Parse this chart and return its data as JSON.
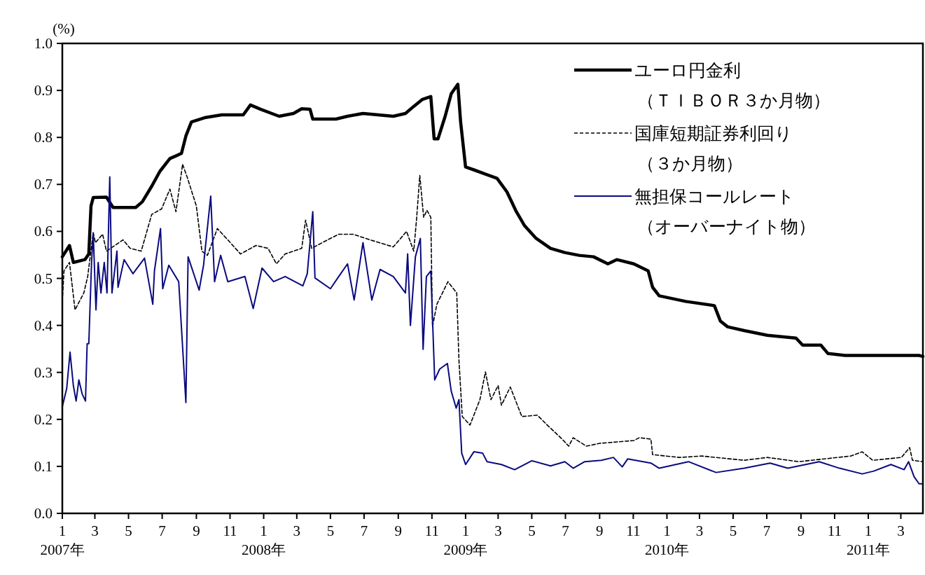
{
  "chart_data": {
    "type": "line",
    "ylabel": "(%)",
    "legend": "top right",
    "grid": false,
    "xlim": [
      "2007-01-01",
      "2011-04-10"
    ],
    "xticks": [
      {
        "value": "2007-01-01",
        "label": "1\n2007年"
      },
      {
        "value": "2007-03-01",
        "label": "3"
      },
      {
        "value": "2007-05-01",
        "label": "5"
      },
      {
        "value": "2007-07-01",
        "label": "7"
      },
      {
        "value": "2007-09-01",
        "label": "9"
      },
      {
        "value": "2007-11-01",
        "label": "11"
      },
      {
        "value": "2008-01-01",
        "label": "1\n2008年"
      },
      {
        "value": "2008-03-01",
        "label": "3"
      },
      {
        "value": "2008-05-01",
        "label": "5"
      },
      {
        "value": "2008-07-01",
        "label": "7"
      },
      {
        "value": "2008-09-01",
        "label": "9"
      },
      {
        "value": "2008-11-01",
        "label": "11"
      },
      {
        "value": "2009-01-01",
        "label": "1\n2009年"
      },
      {
        "value": "2009-03-01",
        "label": "3"
      },
      {
        "value": "2009-05-01",
        "label": "5"
      },
      {
        "value": "2009-07-01",
        "label": "7"
      },
      {
        "value": "2009-09-01",
        "label": "9"
      },
      {
        "value": "2009-11-01",
        "label": "11"
      },
      {
        "value": "2010-01-01",
        "label": "1\n2010年"
      },
      {
        "value": "2010-03-01",
        "label": "3"
      },
      {
        "value": "2010-05-01",
        "label": "5"
      },
      {
        "value": "2010-07-01",
        "label": "7"
      },
      {
        "value": "2010-09-01",
        "label": "9"
      },
      {
        "value": "2010-11-01",
        "label": "11"
      },
      {
        "value": "2011-01-01",
        "label": "1\n2011年"
      },
      {
        "value": "2011-03-01",
        "label": "3"
      }
    ],
    "ylim": [
      0,
      1
    ],
    "yticks": [
      {
        "value": 0,
        "label": "0.0"
      },
      {
        "value": 0.1,
        "label": "0.1"
      },
      {
        "value": 0.2,
        "label": "0.2"
      },
      {
        "value": 0.3,
        "label": "0.3"
      },
      {
        "value": 0.4,
        "label": "0.4"
      },
      {
        "value": 0.5,
        "label": "0.5"
      },
      {
        "value": 0.6,
        "label": "0.6"
      },
      {
        "value": 0.7,
        "label": "0.7"
      },
      {
        "value": 0.8,
        "label": "0.8"
      },
      {
        "value": 0.9,
        "label": "0.9"
      },
      {
        "value": 1,
        "label": "1.0"
      }
    ],
    "series": [
      {
        "name": "ユーロ円金利（ＴＩＢＯＲ３か月物）",
        "color": "#000000",
        "line_style": "solid",
        "x": [
          "2007-01-01",
          "2007-01-14",
          "2007-01-21",
          "2007-02-11",
          "2007-02-18",
          "2007-02-22",
          "2007-02-26",
          "2007-03-22",
          "2007-04-03",
          "2007-05-14",
          "2007-05-26",
          "2007-06-12",
          "2007-06-27",
          "2007-07-15",
          "2007-08-05",
          "2007-08-13",
          "2007-08-23",
          "2007-09-16",
          "2007-10-17",
          "2007-11-25",
          "2007-12-08",
          "2007-12-26",
          "2008-01-29",
          "2008-02-24",
          "2008-03-10",
          "2008-03-25",
          "2008-03-30",
          "2008-05-11",
          "2008-06-01",
          "2008-06-29",
          "2008-08-23",
          "2008-09-14",
          "2008-09-29",
          "2008-10-15",
          "2008-10-30",
          "2008-11-05",
          "2008-11-12",
          "2008-11-25",
          "2008-12-06",
          "2008-12-18",
          "2008-12-23",
          "2009-01-01",
          "2009-01-16",
          "2009-02-06",
          "2009-02-27",
          "2009-03-17",
          "2009-04-03",
          "2009-04-18",
          "2009-05-09",
          "2009-06-04",
          "2009-06-30",
          "2009-07-26",
          "2009-08-21",
          "2009-09-16",
          "2009-10-02",
          "2009-11-02",
          "2009-11-28",
          "2009-12-06",
          "2009-12-18",
          "2010-02-04",
          "2010-03-28",
          "2010-04-08",
          "2010-04-21",
          "2010-05-21",
          "2010-07-02",
          "2010-08-23",
          "2010-09-04",
          "2010-10-07",
          "2010-10-20",
          "2010-11-20",
          "2011-04-03",
          "2011-04-10"
        ],
        "values": [
          0.546,
          0.57,
          0.534,
          0.54,
          0.552,
          0.654,
          0.672,
          0.673,
          0.651,
          0.651,
          0.663,
          0.696,
          0.728,
          0.755,
          0.766,
          0.803,
          0.833,
          0.842,
          0.848,
          0.848,
          0.869,
          0.86,
          0.845,
          0.851,
          0.861,
          0.86,
          0.839,
          0.839,
          0.845,
          0.851,
          0.845,
          0.851,
          0.866,
          0.881,
          0.887,
          0.797,
          0.797,
          0.845,
          0.893,
          0.913,
          0.833,
          0.737,
          0.731,
          0.722,
          0.713,
          0.684,
          0.642,
          0.612,
          0.585,
          0.564,
          0.555,
          0.549,
          0.546,
          0.531,
          0.54,
          0.531,
          0.516,
          0.481,
          0.463,
          0.451,
          0.442,
          0.409,
          0.397,
          0.389,
          0.379,
          0.373,
          0.358,
          0.358,
          0.34,
          0.336,
          0.336,
          0.334
        ]
      },
      {
        "name": "国庫短期証券利回り（３か月物）",
        "color": "#000000",
        "line_style": "dashed",
        "x": [
          "2007-01-01",
          "2007-01-04",
          "2007-01-14",
          "2007-01-24",
          "2007-02-09",
          "2007-02-16",
          "2007-02-26",
          "2007-03-02",
          "2007-03-15",
          "2007-03-22",
          "2007-04-21",
          "2007-05-04",
          "2007-05-24",
          "2007-06-12",
          "2007-06-30",
          "2007-07-15",
          "2007-07-26",
          "2007-08-07",
          "2007-08-16",
          "2007-09-01",
          "2007-09-11",
          "2007-09-21",
          "2007-10-09",
          "2007-10-28",
          "2007-11-20",
          "2007-12-18",
          "2008-01-09",
          "2008-01-24",
          "2008-02-09",
          "2008-03-10",
          "2008-03-17",
          "2008-03-28",
          "2008-04-21",
          "2008-05-16",
          "2008-06-11",
          "2008-07-12",
          "2008-08-23",
          "2008-09-16",
          "2008-09-29",
          "2008-10-04",
          "2008-10-10",
          "2008-10-17",
          "2008-10-23",
          "2008-10-30",
          "2008-11-02",
          "2008-11-10",
          "2008-11-30",
          "2008-12-16",
          "2008-12-20",
          "2008-12-26",
          "2009-01-09",
          "2009-01-27",
          "2009-02-06",
          "2009-02-16",
          "2009-03-01",
          "2009-03-07",
          "2009-03-23",
          "2009-04-13",
          "2009-05-11",
          "2009-05-29",
          "2009-06-25",
          "2009-07-07",
          "2009-07-15",
          "2009-08-08",
          "2009-09-01",
          "2009-10-02",
          "2009-11-02",
          "2009-11-12",
          "2009-12-03",
          "2009-12-06",
          "2010-01-24",
          "2010-03-05",
          "2010-05-21",
          "2010-07-02",
          "2010-08-28",
          "2010-11-30",
          "2010-12-21",
          "2011-01-09",
          "2011-03-02",
          "2011-03-17",
          "2011-03-22",
          "2011-04-10"
        ],
        "values": [
          0.451,
          0.516,
          0.534,
          0.433,
          0.469,
          0.504,
          0.597,
          0.576,
          0.594,
          0.558,
          0.582,
          0.564,
          0.558,
          0.636,
          0.648,
          0.69,
          0.642,
          0.743,
          0.713,
          0.654,
          0.558,
          0.549,
          0.606,
          0.582,
          0.552,
          0.57,
          0.564,
          0.531,
          0.552,
          0.564,
          0.624,
          0.564,
          0.579,
          0.594,
          0.594,
          0.582,
          0.567,
          0.6,
          0.558,
          0.624,
          0.719,
          0.63,
          0.645,
          0.63,
          0.397,
          0.445,
          0.493,
          0.469,
          0.325,
          0.206,
          0.188,
          0.242,
          0.301,
          0.242,
          0.272,
          0.23,
          0.269,
          0.206,
          0.209,
          0.188,
          0.158,
          0.143,
          0.161,
          0.143,
          0.149,
          0.152,
          0.155,
          0.161,
          0.158,
          0.125,
          0.119,
          0.122,
          0.113,
          0.119,
          0.11,
          0.122,
          0.131,
          0.113,
          0.119,
          0.14,
          0.113,
          0.11
        ]
      },
      {
        "name": "無担保コールレート（オーバーナイト物）",
        "color": "#0a0a80",
        "line_style": "solid",
        "x": [
          "2007-01-01",
          "2007-01-09",
          "2007-01-15",
          "2007-01-21",
          "2007-01-26",
          "2007-01-31",
          "2007-02-06",
          "2007-02-12",
          "2007-02-15",
          "2007-02-18",
          "2007-02-23",
          "2007-02-26",
          "2007-03-03",
          "2007-03-07",
          "2007-03-12",
          "2007-03-18",
          "2007-03-23",
          "2007-03-28",
          "2007-04-01",
          "2007-04-10",
          "2007-04-12",
          "2007-04-23",
          "2007-05-09",
          "2007-05-30",
          "2007-06-14",
          "2007-06-17",
          "2007-06-28",
          "2007-07-02",
          "2007-07-13",
          "2007-07-31",
          "2007-08-13",
          "2007-08-17",
          "2007-09-06",
          "2007-09-14",
          "2007-09-27",
          "2007-10-04",
          "2007-10-15",
          "2007-10-28",
          "2007-11-28",
          "2007-12-13",
          "2007-12-29",
          "2008-01-19",
          "2008-02-09",
          "2008-03-12",
          "2008-03-20",
          "2008-03-30",
          "2008-04-03",
          "2008-05-01",
          "2008-05-16",
          "2008-06-01",
          "2008-06-13",
          "2008-06-29",
          "2008-07-15",
          "2008-07-30",
          "2008-08-23",
          "2008-09-14",
          "2008-09-18",
          "2008-09-23",
          "2008-10-02",
          "2008-10-11",
          "2008-10-16",
          "2008-10-22",
          "2008-10-30",
          "2008-11-06",
          "2008-11-15",
          "2008-11-29",
          "2008-12-06",
          "2008-12-15",
          "2008-12-20",
          "2008-12-25",
          "2009-01-01",
          "2009-01-16",
          "2009-02-01",
          "2009-02-09",
          "2009-03-07",
          "2009-03-31",
          "2009-05-01",
          "2009-06-04",
          "2009-06-30",
          "2009-07-15",
          "2009-08-05",
          "2009-09-04",
          "2009-09-26",
          "2009-10-12",
          "2009-10-22",
          "2009-12-03",
          "2009-12-18",
          "2010-02-09",
          "2010-03-31",
          "2010-05-21",
          "2010-07-07",
          "2010-08-08",
          "2010-10-04",
          "2010-11-10",
          "2010-12-21",
          "2011-01-11",
          "2011-02-11",
          "2011-03-07",
          "2011-03-15",
          "2011-03-25",
          "2011-04-03",
          "2011-04-10"
        ],
        "values": [
          0.227,
          0.266,
          0.343,
          0.272,
          0.239,
          0.284,
          0.254,
          0.239,
          0.361,
          0.361,
          0.534,
          0.597,
          0.433,
          0.534,
          0.469,
          0.534,
          0.469,
          0.716,
          0.469,
          0.558,
          0.481,
          0.54,
          0.51,
          0.543,
          0.445,
          0.516,
          0.606,
          0.478,
          0.528,
          0.493,
          0.236,
          0.546,
          0.475,
          0.528,
          0.675,
          0.493,
          0.549,
          0.493,
          0.504,
          0.436,
          0.522,
          0.493,
          0.504,
          0.484,
          0.51,
          0.642,
          0.501,
          0.478,
          0.504,
          0.531,
          0.454,
          0.576,
          0.454,
          0.519,
          0.504,
          0.469,
          0.552,
          0.4,
          0.546,
          0.585,
          0.349,
          0.504,
          0.516,
          0.284,
          0.307,
          0.319,
          0.26,
          0.224,
          0.242,
          0.128,
          0.104,
          0.131,
          0.128,
          0.11,
          0.104,
          0.093,
          0.112,
          0.101,
          0.11,
          0.096,
          0.11,
          0.113,
          0.119,
          0.099,
          0.116,
          0.107,
          0.096,
          0.11,
          0.087,
          0.096,
          0.107,
          0.096,
          0.11,
          0.096,
          0.084,
          0.09,
          0.104,
          0.093,
          0.11,
          0.078,
          0.063,
          0.063
        ]
      }
    ]
  }
}
